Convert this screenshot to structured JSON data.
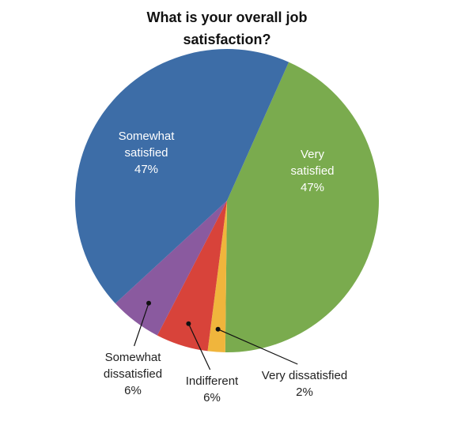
{
  "chart_data": {
    "type": "pie",
    "title": "What is your overall job satisfaction?",
    "categories": [
      "Very satisfied",
      "Very dissatisfied",
      "Indifferent",
      "Somewhat dissatisfied",
      "Somewhat satisfied"
    ],
    "values": [
      47,
      2,
      6,
      6,
      47
    ],
    "value_labels": [
      "47%",
      "2%",
      "6%",
      "6%",
      "47%"
    ],
    "colors": [
      "#7aab4e",
      "#f0b53c",
      "#d8433a",
      "#8a5a9f",
      "#3d6da7"
    ]
  }
}
